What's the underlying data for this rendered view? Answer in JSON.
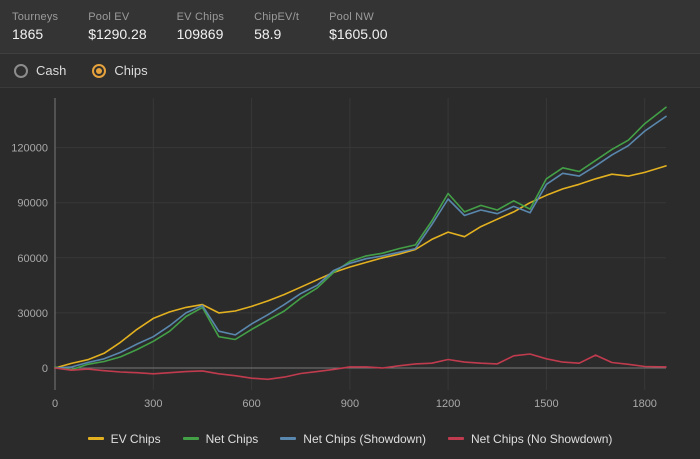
{
  "stats": [
    {
      "label": "Tourneys",
      "value": "1865"
    },
    {
      "label": "Pool EV",
      "value": "$1290.28"
    },
    {
      "label": "EV Chips",
      "value": "109869"
    },
    {
      "label": "ChipEV/t",
      "value": "58.9"
    },
    {
      "label": "Pool NW",
      "value": "$1605.00"
    }
  ],
  "view_toggle": {
    "accent": "#e6a23c",
    "options": [
      {
        "label": "Cash",
        "selected": false
      },
      {
        "label": "Chips",
        "selected": true
      }
    ]
  },
  "chart_data": {
    "type": "line",
    "title": "",
    "xlabel": "",
    "ylabel": "",
    "grid": true,
    "legend_position": "bottom",
    "xlim": [
      0,
      1865
    ],
    "ylim": [
      -12000,
      147000
    ],
    "x_ticks": [
      0,
      300,
      600,
      900,
      1200,
      1500,
      1800
    ],
    "y_ticks": [
      0,
      30000,
      60000,
      90000,
      120000
    ],
    "x": [
      0,
      50,
      100,
      150,
      200,
      250,
      300,
      350,
      400,
      450,
      500,
      550,
      600,
      650,
      700,
      750,
      800,
      850,
      900,
      950,
      1000,
      1050,
      1100,
      1150,
      1200,
      1250,
      1300,
      1350,
      1400,
      1450,
      1500,
      1550,
      1600,
      1650,
      1700,
      1750,
      1800,
      1865
    ],
    "series": [
      {
        "name": "EV Chips",
        "color": "#e3b120",
        "values": [
          0,
          2500,
          4500,
          8000,
          14000,
          21000,
          27000,
          30500,
          33000,
          34500,
          30000,
          31000,
          33500,
          36500,
          40000,
          44000,
          48000,
          52000,
          55000,
          57500,
          60000,
          62000,
          64500,
          70000,
          74000,
          71500,
          77000,
          81000,
          85000,
          90000,
          94000,
          97500,
          100000,
          103000,
          105500,
          104500,
          106500,
          110000
        ]
      },
      {
        "name": "Net Chips",
        "color": "#43a047",
        "values": [
          500,
          -1000,
          2000,
          3500,
          6000,
          10000,
          14500,
          20000,
          28000,
          33000,
          17000,
          15500,
          21000,
          26000,
          31000,
          38000,
          43500,
          52000,
          58000,
          61000,
          62500,
          65000,
          67000,
          80000,
          95000,
          85000,
          88500,
          86000,
          91000,
          86500,
          103000,
          109000,
          107000,
          113000,
          119000,
          124000,
          133000,
          142000
        ]
      },
      {
        "name": "Net Chips (Showdown)",
        "color": "#5a87ad",
        "values": [
          0,
          500,
          3000,
          5000,
          8500,
          13000,
          17000,
          23000,
          30000,
          34000,
          20000,
          18000,
          24000,
          29000,
          34500,
          40500,
          45000,
          53000,
          57000,
          59500,
          61000,
          63000,
          65000,
          78000,
          92000,
          83000,
          86000,
          84000,
          88000,
          84500,
          100000,
          106000,
          104500,
          110000,
          116000,
          121000,
          129000,
          137000
        ]
      },
      {
        "name": "Net Chips (No Showdown)",
        "color": "#c13b4e",
        "values": [
          0,
          -1200,
          -600,
          -1500,
          -2200,
          -2600,
          -3200,
          -2600,
          -2000,
          -1600,
          -3200,
          -4200,
          -5600,
          -6200,
          -5000,
          -3000,
          -2000,
          -800,
          600,
          600,
          0,
          1200,
          2200,
          2600,
          4600,
          3200,
          2600,
          2200,
          6600,
          7600,
          5000,
          3200,
          2600,
          7000,
          3000,
          2000,
          800,
          600
        ]
      }
    ]
  }
}
